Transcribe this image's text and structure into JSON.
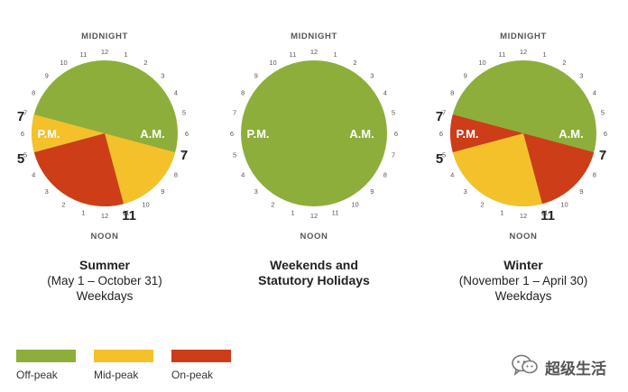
{
  "colors": {
    "off_peak": "#8dae3a",
    "mid_peak": "#f4c12a",
    "on_peak": "#cc3d18",
    "dial_text": "#555555",
    "side_text": "#222222"
  },
  "dial_labels": {
    "top": "MIDNIGHT",
    "bottom": "NOON",
    "am": "A.M.",
    "pm": "P.M."
  },
  "hour_labels": {
    "am": [
      "12",
      "1",
      "2",
      "3",
      "4",
      "5",
      "6",
      "7",
      "8",
      "9",
      "10",
      "11"
    ],
    "pm": [
      "12",
      "1",
      "2",
      "3",
      "4",
      "5",
      "6",
      "7",
      "8",
      "9",
      "10",
      "11"
    ]
  },
  "clocks": [
    {
      "id": "summer",
      "title": "Summer",
      "lines": [
        "(May 1 – October 31)",
        "Weekdays"
      ],
      "segments": [
        {
          "rate": "mid_peak",
          "from_hour": 7,
          "to_hour": 11
        },
        {
          "rate": "on_peak",
          "from_hour": 11,
          "to_hour": 17
        },
        {
          "rate": "mid_peak",
          "from_hour": 17,
          "to_hour": 19
        }
      ],
      "side_labels": {
        "am_right": "7",
        "noon_right": "11",
        "pm_left_lower": "5",
        "pm_left_upper": "7"
      }
    },
    {
      "id": "weekends",
      "title": "Weekends and",
      "lines": [
        "Statutory Holidays"
      ],
      "title_lines_bold": true,
      "segments": [],
      "side_labels": {}
    },
    {
      "id": "winter",
      "title": "Winter",
      "lines": [
        "(November 1 – April 30)",
        "Weekdays"
      ],
      "segments": [
        {
          "rate": "on_peak",
          "from_hour": 7,
          "to_hour": 11
        },
        {
          "rate": "mid_peak",
          "from_hour": 11,
          "to_hour": 17
        },
        {
          "rate": "on_peak",
          "from_hour": 17,
          "to_hour": 19
        }
      ],
      "side_labels": {
        "am_right": "7",
        "noon_right": "11",
        "pm_left_lower": "5",
        "pm_left_upper": "7"
      }
    }
  ],
  "legend": [
    {
      "label": "Off-peak",
      "rate": "off_peak"
    },
    {
      "label": "Mid-peak",
      "rate": "mid_peak"
    },
    {
      "label": "On-peak",
      "rate": "on_peak"
    }
  ],
  "watermark": {
    "text": "超级生活",
    "icon": "wechat-icon"
  }
}
